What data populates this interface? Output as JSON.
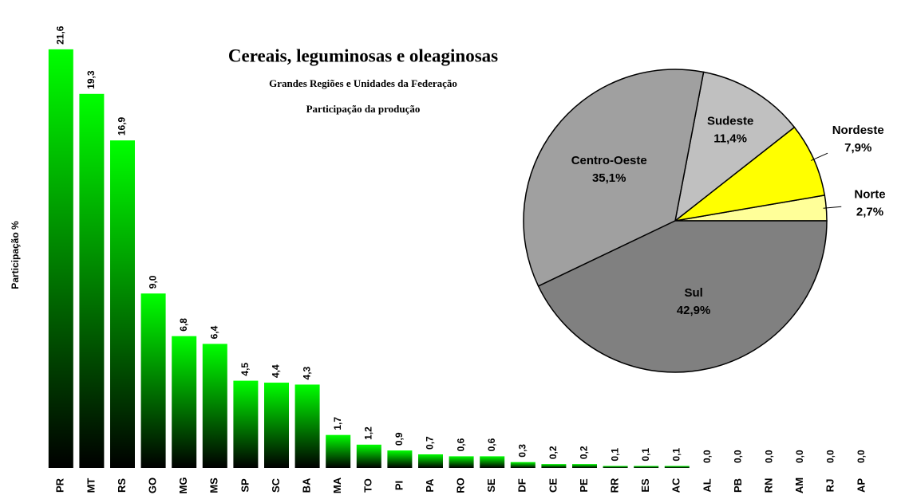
{
  "chart_data": [
    {
      "type": "bar",
      "title": "Cereais, leguminosas e oleaginosas",
      "subtitle": [
        "Grandes Regiões e Unidades da Federação",
        "Participação da  produção"
      ],
      "ylabel": "Participação %",
      "categories": [
        "PR",
        "MT",
        "RS",
        "GO",
        "MG",
        "MS",
        "SP",
        "SC",
        "BA",
        "MA",
        "TO",
        "PI",
        "PA",
        "RO",
        "SE",
        "DF",
        "CE",
        "PE",
        "RR",
        "ES",
        "AC",
        "AL",
        "PB",
        "RN",
        "AM",
        "RJ",
        "AP"
      ],
      "values": [
        21.6,
        19.3,
        16.9,
        9.0,
        6.8,
        6.4,
        4.5,
        4.4,
        4.3,
        1.7,
        1.2,
        0.9,
        0.7,
        0.6,
        0.6,
        0.3,
        0.2,
        0.2,
        0.1,
        0.1,
        0.1,
        0.0,
        0.0,
        0.0,
        0.0,
        0.0,
        0.0
      ],
      "value_labels": [
        "21,6",
        "19,3",
        "16,9",
        "9,0",
        "6,8",
        "6,4",
        "4,5",
        "4,4",
        "4,3",
        "1,7",
        "1,2",
        "0,9",
        "0,7",
        "0,6",
        "0,6",
        "0,3",
        "0,2",
        "0,2",
        "0,1",
        "0,1",
        "0,1",
        "0,0",
        "0,0",
        "0,0",
        "0,0",
        "0,0",
        "0,0"
      ],
      "color": "#00ff00",
      "ylim": [
        0,
        22.5
      ]
    },
    {
      "type": "pie",
      "categories": [
        "Norte",
        "Nordeste",
        "Sudeste",
        "Centro-Oeste",
        "Sul"
      ],
      "values": [
        2.7,
        7.9,
        11.4,
        35.1,
        42.9
      ],
      "value_labels": [
        "2,7%",
        "7,9%",
        "11,4%",
        "35,1%",
        "42,9%"
      ],
      "colors": [
        "#ffff99",
        "#ffff00",
        "#c0c0c0",
        "#a0a0a0",
        "#808080"
      ]
    }
  ]
}
